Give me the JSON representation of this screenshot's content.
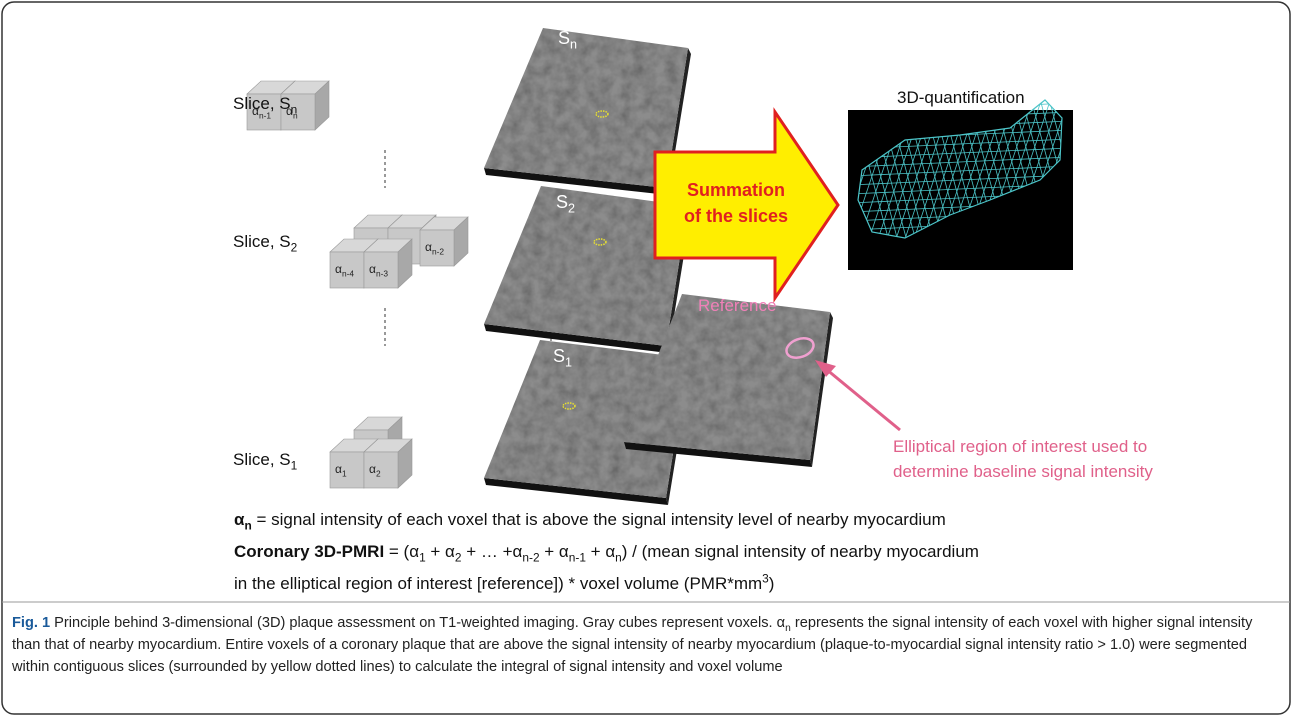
{
  "slices": [
    {
      "label": [
        "Slice, S",
        {
          "sub": "n"
        }
      ],
      "voxels": [
        [
          "α",
          {
            "sub": "n-1"
          }
        ],
        [
          "α",
          {
            "sub": "n"
          }
        ]
      ]
    },
    {
      "label": [
        "Slice, S",
        {
          "sub": "2"
        }
      ],
      "voxels": [
        [
          "α",
          {
            "sub": "n-4"
          }
        ],
        [
          "α",
          {
            "sub": "n-3"
          }
        ],
        [
          "α",
          {
            "sub": "n-2"
          }
        ]
      ]
    },
    {
      "label": [
        "Slice, S",
        {
          "sub": "1"
        }
      ],
      "voxels": [
        [
          "α",
          {
            "sub": "1"
          }
        ],
        [
          "α",
          {
            "sub": "2"
          }
        ]
      ]
    }
  ],
  "images": [
    [
      "S",
      {
        "sub": "n"
      }
    ],
    [
      "S",
      {
        "sub": "2"
      }
    ],
    [
      "S",
      {
        "sub": "1"
      }
    ]
  ],
  "reference": "Reference",
  "summation": [
    "Summation",
    "of the slices"
  ],
  "quantification_title": "3D-quantification",
  "roi_note": [
    "Elliptical region of interest used to",
    "determine baseline signal intensity"
  ],
  "equations": [
    [
      {
        "b": "α"
      },
      {
        "bsub": "n"
      },
      " = signal intensity of each voxel that is above the signal intensity level of nearby myocardium"
    ],
    [
      {
        "b": "Coronary 3D-PMRI"
      },
      " = (α",
      {
        "sub": "1"
      },
      " + α",
      {
        "sub": "2"
      },
      " + … +α",
      {
        "sub": "n-2"
      },
      " + α",
      {
        "sub": "n-1"
      },
      " + α",
      {
        "sub": "n"
      },
      ") / (mean signal intensity of nearby myocardium"
    ],
    [
      "in the elliptical region of interest [reference]) * voxel volume (PMR*mm",
      {
        "sup": "3"
      },
      ")"
    ]
  ],
  "caption": [
    {
      "b": "Fig. 1"
    },
    " Principle behind 3-dimensional (3D) plaque assessment on T1-weighted imaging. Gray cubes represent voxels. α",
    {
      "sub": "n"
    },
    " represents the signal intensity of each voxel with higher signal intensity than that of nearby myocardium. Entire voxels of a coronary plaque that are above the signal intensity of nearby myocardium (plaque-to-myocardial signal intensity ratio > 1.0) were segmented within contiguous slices (surrounded by yellow dotted lines) to calculate the integral of signal intensity and voxel volume"
  ]
}
